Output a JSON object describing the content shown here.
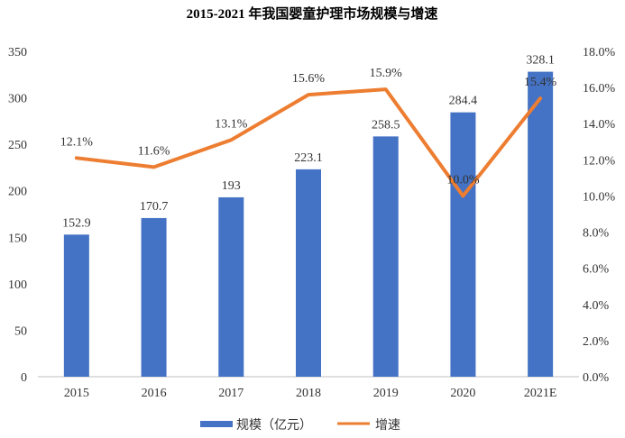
{
  "chart_data": {
    "type": "bar",
    "title": "2015-2021 年我国婴童护理市场规模与增速",
    "categories": [
      "2015",
      "2016",
      "2017",
      "2018",
      "2019",
      "2020",
      "2021E"
    ],
    "series": [
      {
        "name": "规模（亿元）",
        "type": "bar",
        "axis": "left",
        "values": [
          152.9,
          170.7,
          193,
          223.1,
          258.5,
          284.4,
          328.1
        ],
        "labels": [
          "152.9",
          "170.7",
          "193",
          "223.1",
          "258.5",
          "284.4",
          "328.1"
        ],
        "color": "#4472C4"
      },
      {
        "name": "增速",
        "type": "line",
        "axis": "right",
        "values": [
          12.1,
          11.6,
          13.1,
          15.6,
          15.9,
          10.0,
          15.4
        ],
        "labels": [
          "12.1%",
          "11.6%",
          "13.1%",
          "15.6%",
          "15.9%",
          "10.0%",
          "15.4%"
        ],
        "color": "#ED7D31"
      }
    ],
    "y_left": {
      "min": 0,
      "max": 350,
      "step": 50,
      "ticks": [
        "0",
        "50",
        "100",
        "150",
        "200",
        "250",
        "300",
        "350"
      ]
    },
    "y_right": {
      "min": 0,
      "max": 18,
      "step": 2,
      "ticks": [
        "0.0%",
        "2.0%",
        "4.0%",
        "6.0%",
        "8.0%",
        "10.0%",
        "12.0%",
        "14.0%",
        "16.0%",
        "18.0%"
      ]
    },
    "grid": false,
    "legend_position": "bottom"
  }
}
